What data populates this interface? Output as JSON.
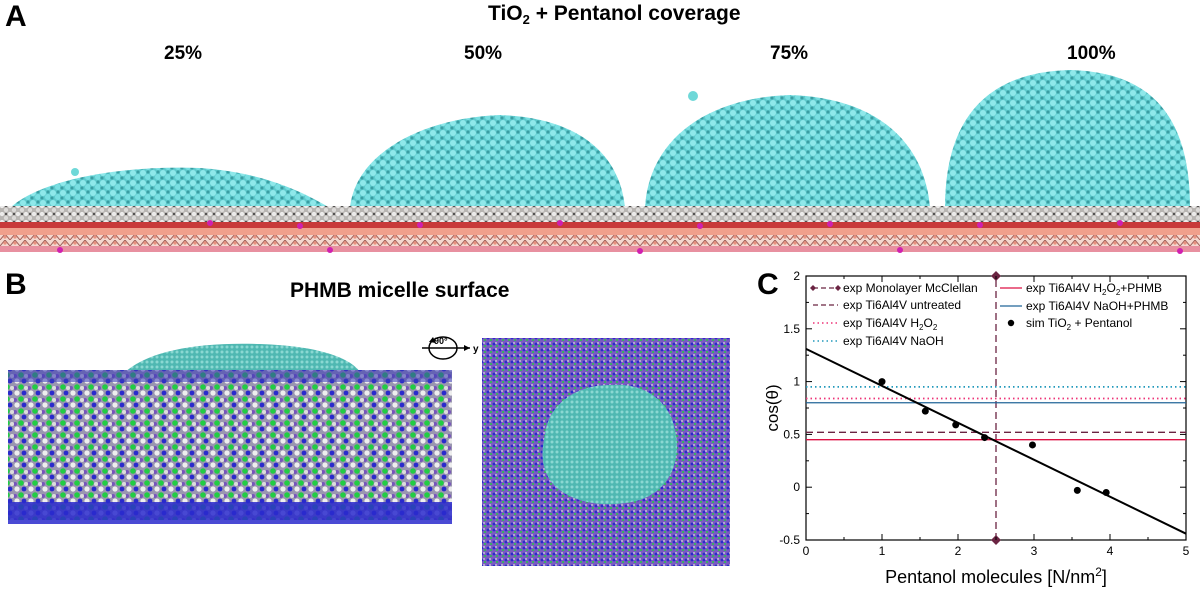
{
  "panel_a": {
    "letter": "A",
    "title_main": "TiO",
    "title_sub": "2",
    "title_rest": " + Pentanol coverage",
    "coverages": [
      "25%",
      "50%",
      "75%",
      "100%"
    ]
  },
  "panel_b": {
    "letter": "B",
    "title": "PHMB micelle surface",
    "rotation_label": "90°",
    "rotation_axis": "y"
  },
  "panel_c": {
    "letter": "C"
  },
  "colors": {
    "droplet": "#6fd8d8",
    "surface_white": "#d9d6d4",
    "oxide_red": "#cc2222",
    "salmon": "#f0a090",
    "magenta": "#dd22bb",
    "phmb_blue": "#2a2acc",
    "phmb_green": "#22cc44",
    "phmb_purple": "#8866cc",
    "micelle_cyan": "#58c8c0"
  },
  "chart_data": {
    "type": "scatter",
    "xlabel": "Pentanol molecules [N/nm",
    "xlabel_sup": "2",
    "xlabel_end": "]",
    "ylabel": "cos(θ)",
    "xlim": [
      0,
      5
    ],
    "ylim": [
      -0.5,
      2
    ],
    "xticks": [
      0,
      1,
      2,
      3,
      4,
      5
    ],
    "yticks": [
      -0.5,
      0,
      0.5,
      1,
      1.5,
      2
    ],
    "ytick_labels": [
      "-0.5",
      "0",
      "0.5",
      "1",
      "1.5",
      "2"
    ],
    "legend_left": [
      {
        "label": "exp Monolayer McClellan",
        "color": "#6b2442",
        "style": "dashed-diamond"
      },
      {
        "label": "exp Ti6Al4V untreated",
        "color": "#6b2442",
        "style": "dashed"
      },
      {
        "label": "exp Ti6Al4V H",
        "sub": "2",
        "label_end": "O",
        "sub2": "2",
        "color": "#ee3377",
        "style": "dotted"
      },
      {
        "label": "exp Ti6Al4V NaOH",
        "color": "#2299bb",
        "style": "dotted"
      }
    ],
    "legend_right": [
      {
        "label": "exp Ti6Al4V H",
        "sub": "2",
        "label_end": "O",
        "sub2": "2",
        "label_tail": "+PHMB",
        "color": "#dd1144",
        "style": "solid"
      },
      {
        "label": "exp Ti6Al4V NaOH+PHMB",
        "color": "#226699",
        "style": "solid"
      },
      {
        "label": "sim TiO",
        "sub": "2",
        "label_end": " + Pentanol",
        "color": "#000000",
        "style": "dot"
      }
    ],
    "series": [
      {
        "name": "exp Monolayer McClellan",
        "type": "vline",
        "x": 2.5,
        "y_markers": [
          2,
          -0.5
        ],
        "color": "#6b2442"
      },
      {
        "name": "exp Ti6Al4V untreated",
        "type": "hline",
        "y": 0.52,
        "color": "#6b2442"
      },
      {
        "name": "exp Ti6Al4V H2O2",
        "type": "hline",
        "y": 0.84,
        "color": "#ee3377"
      },
      {
        "name": "exp Ti6Al4V NaOH",
        "type": "hline",
        "y": 0.95,
        "color": "#2299bb"
      },
      {
        "name": "exp Ti6Al4V H2O2+PHMB",
        "type": "hline",
        "y": 0.45,
        "color": "#dd1144"
      },
      {
        "name": "exp Ti6Al4V NaOH+PHMB",
        "type": "hline",
        "y": 0.8,
        "color": "#226699"
      },
      {
        "name": "sim TiO2 + Pentanol",
        "type": "points",
        "x": [
          1.0,
          1.57,
          1.97,
          2.35,
          2.98,
          3.57,
          3.95
        ],
        "y": [
          1.0,
          0.72,
          0.59,
          0.47,
          0.4,
          -0.03,
          -0.05
        ]
      },
      {
        "name": "fit",
        "type": "line",
        "x": [
          0,
          5
        ],
        "y": [
          1.31,
          -0.44
        ],
        "color": "#000000"
      }
    ]
  }
}
